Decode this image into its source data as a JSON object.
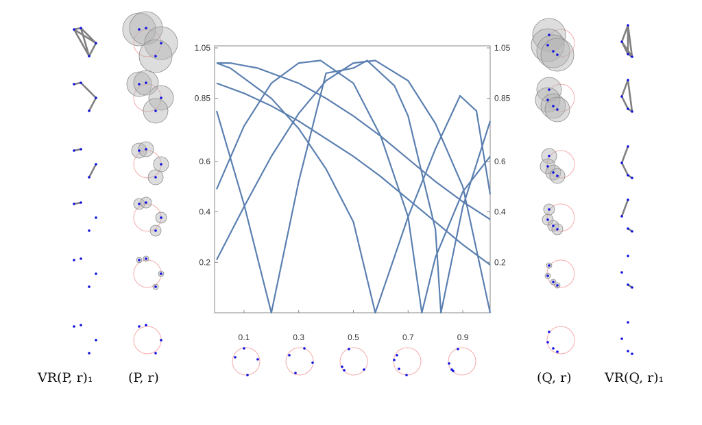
{
  "labels": {
    "vr_p": "VR(P, r)₁",
    "p_r": "(P, r)",
    "q_r": "(Q, r)",
    "vr_q": "VR(Q, r)₁"
  },
  "colors": {
    "curve": "#5a7fb0",
    "point": "#1010e0",
    "edge": "#808080",
    "ball_fill": "#b4b4b4",
    "ball_stroke": "#8a8a8a",
    "circle": "#f5aaaa",
    "frame": "#888888"
  },
  "chart_data": {
    "type": "line",
    "xlim": [
      0,
      1
    ],
    "ylim": [
      0,
      1.05
    ],
    "x_ticks": [
      "0.1",
      "0.3",
      "0.5",
      "0.7",
      "0.9"
    ],
    "y_ticks": [
      "0.2",
      "0.4",
      "0.6",
      "0.85",
      "1.05"
    ],
    "series": [
      {
        "x": [
          0,
          0.05,
          0.1,
          0.15,
          0.2,
          0.3,
          0.4,
          0.5,
          0.6,
          0.7,
          0.8,
          0.9,
          1.0
        ],
        "y": [
          0.99,
          0.99,
          0.98,
          0.97,
          0.95,
          0.91,
          0.85,
          0.78,
          0.7,
          0.61,
          0.52,
          0.44,
          0.37
        ]
      },
      {
        "x": [
          0,
          0.1,
          0.2,
          0.3,
          0.4,
          0.5,
          0.6,
          0.7,
          0.8,
          0.9,
          1.0
        ],
        "y": [
          0.91,
          0.87,
          0.82,
          0.76,
          0.69,
          0.62,
          0.54,
          0.45,
          0.36,
          0.27,
          0.19
        ]
      },
      {
        "x": [
          0,
          0.1,
          0.2,
          0.3,
          0.4,
          0.5,
          0.58,
          0.7,
          0.8,
          0.9,
          1.0
        ],
        "y": [
          0.21,
          0.42,
          0.62,
          0.79,
          0.92,
          0.99,
          1.0,
          0.92,
          0.75,
          0.5,
          0.0
        ]
      },
      {
        "x": [
          0,
          0.1,
          0.2,
          0.3,
          0.38,
          0.5,
          0.6,
          0.7,
          0.75,
          0.8,
          0.9,
          1.0
        ],
        "y": [
          0.49,
          0.74,
          0.91,
          0.99,
          1.0,
          0.91,
          0.7,
          0.38,
          0.0,
          0.22,
          0.48,
          0.62
        ]
      },
      {
        "x": [
          0,
          0.1,
          0.2,
          0.3,
          0.4,
          0.5,
          0.55,
          0.65,
          0.7,
          0.8,
          0.82,
          0.9,
          1.0
        ],
        "y": [
          0.8,
          0.43,
          0.0,
          0.52,
          0.95,
          0.97,
          1.0,
          0.9,
          0.78,
          0.33,
          0.0,
          0.42,
          0.76
        ]
      },
      {
        "x": [
          0,
          0.05,
          0.1,
          0.2,
          0.3,
          0.4,
          0.5,
          0.58,
          0.7,
          0.8,
          0.89,
          0.95,
          1.0
        ],
        "y": [
          0.99,
          0.97,
          0.93,
          0.85,
          0.73,
          0.57,
          0.36,
          0.0,
          0.38,
          0.65,
          0.86,
          0.8,
          0.47
        ]
      }
    ]
  }
}
